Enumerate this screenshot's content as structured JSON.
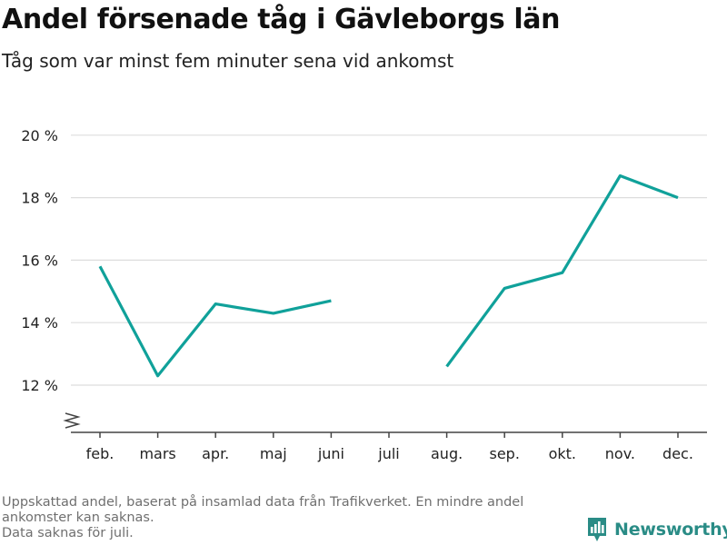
{
  "title": "Andel försenade tåg i Gävleborgs län",
  "subtitle": "Tåg som var minst fem minuter sena vid ankomst",
  "chart_data": {
    "type": "line",
    "categories": [
      "feb.",
      "mars",
      "apr.",
      "maj",
      "juni",
      "juli",
      "aug.",
      "sep.",
      "okt.",
      "nov.",
      "dec."
    ],
    "series": [
      {
        "values": [
          15.8,
          12.3,
          14.6,
          14.3,
          14.7,
          null,
          12.6,
          15.1,
          15.6,
          18.7,
          18.0
        ],
        "color": "#10a19a"
      }
    ],
    "y_ticks": [
      12,
      14,
      16,
      18,
      20
    ],
    "y_tick_labels": [
      "12 %",
      "14 %",
      "16 %",
      "18 %",
      "20 %"
    ],
    "ylim": [
      10.5,
      20
    ],
    "y_axis_break": true,
    "grid": true,
    "gridline_color": "#dddddd",
    "axis_color": "#444444"
  },
  "footnote": {
    "line1": "Uppskattad andel, baserat på insamlad data från Trafikverket. En mindre andel ankomster kan saknas.",
    "line2": "Data saknas för juli."
  },
  "brand": {
    "name": "Newsworthy",
    "logo_icon": "bar-chart-pin-icon",
    "color": "#2a8c86"
  }
}
